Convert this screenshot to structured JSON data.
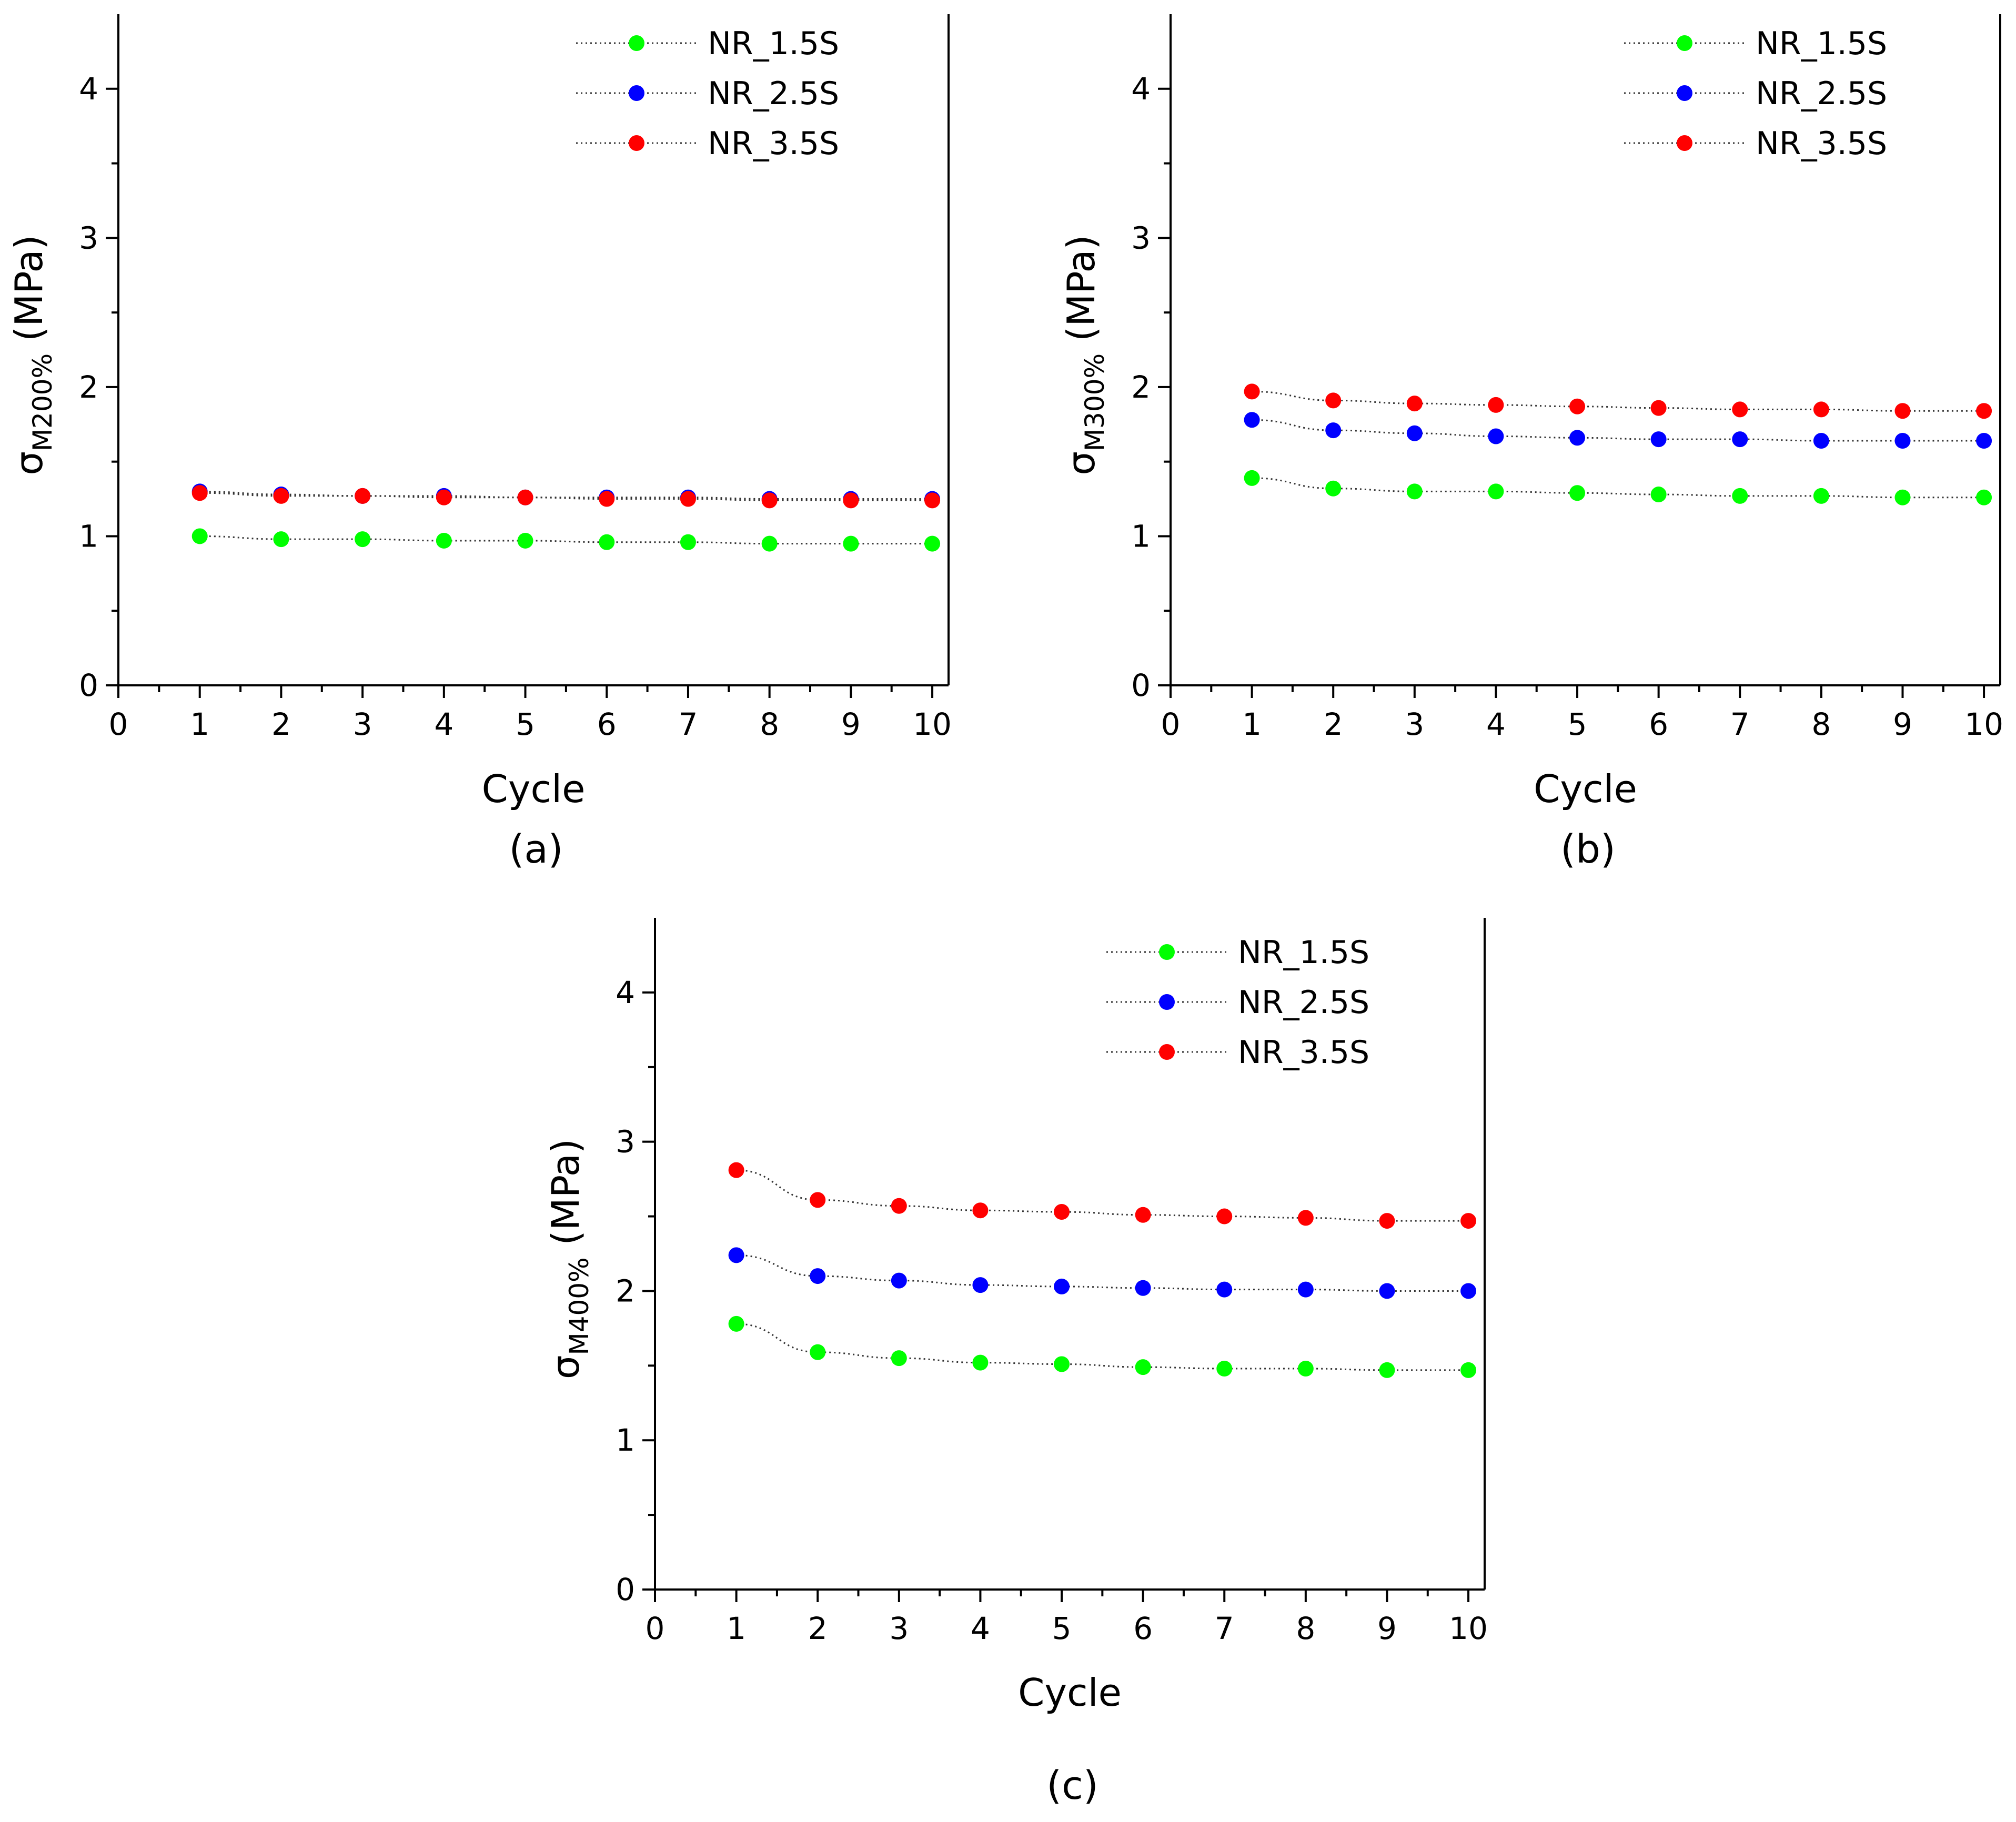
{
  "colors": {
    "NR_1.5S": "#00ff00",
    "NR_2.5S": "#0000ff",
    "NR_3.5S": "#ff0000",
    "axis": "#000000",
    "connector": "#333333"
  },
  "chart_data": [
    {
      "type": "scatter",
      "panel_label": "(a)",
      "xlabel": "Cycle",
      "ylabel": {
        "symbol": "σ",
        "subscript": "M200%",
        "unit": " (MPa)"
      },
      "x": [
        1,
        2,
        3,
        4,
        5,
        6,
        7,
        8,
        9,
        10
      ],
      "xlim": [
        0,
        10.2
      ],
      "ylim": [
        0,
        4.5
      ],
      "x_ticks": [
        "0",
        "1",
        "2",
        "3",
        "4",
        "5",
        "6",
        "7",
        "8",
        "9",
        "10"
      ],
      "y_ticks": [
        "0",
        "1",
        "2",
        "3",
        "4"
      ],
      "legend_position": "top-right",
      "series": [
        {
          "name": "NR_1.5S",
          "values": [
            1.0,
            0.98,
            0.98,
            0.97,
            0.97,
            0.96,
            0.96,
            0.95,
            0.95,
            0.95
          ]
        },
        {
          "name": "NR_2.5S",
          "values": [
            1.3,
            1.28,
            1.27,
            1.27,
            1.26,
            1.26,
            1.26,
            1.25,
            1.25,
            1.25
          ]
        },
        {
          "name": "NR_3.5S",
          "values": [
            1.29,
            1.27,
            1.27,
            1.26,
            1.26,
            1.25,
            1.25,
            1.24,
            1.24,
            1.24
          ]
        }
      ]
    },
    {
      "type": "scatter",
      "panel_label": "(b)",
      "xlabel": "Cycle",
      "ylabel": {
        "symbol": "σ",
        "subscript": "M300%",
        "unit": " (MPa)"
      },
      "x": [
        1,
        2,
        3,
        4,
        5,
        6,
        7,
        8,
        9,
        10
      ],
      "xlim": [
        0,
        10.2
      ],
      "ylim": [
        0,
        4.5
      ],
      "x_ticks": [
        "0",
        "1",
        "2",
        "3",
        "4",
        "5",
        "6",
        "7",
        "8",
        "9",
        "10"
      ],
      "y_ticks": [
        "0",
        "1",
        "2",
        "3",
        "4"
      ],
      "legend_position": "top-right",
      "series": [
        {
          "name": "NR_1.5S",
          "values": [
            1.39,
            1.32,
            1.3,
            1.3,
            1.29,
            1.28,
            1.27,
            1.27,
            1.26,
            1.26
          ]
        },
        {
          "name": "NR_2.5S",
          "values": [
            1.78,
            1.71,
            1.69,
            1.67,
            1.66,
            1.65,
            1.65,
            1.64,
            1.64,
            1.64
          ]
        },
        {
          "name": "NR_3.5S",
          "values": [
            1.97,
            1.91,
            1.89,
            1.88,
            1.87,
            1.86,
            1.85,
            1.85,
            1.84,
            1.84
          ]
        }
      ]
    },
    {
      "type": "scatter",
      "panel_label": "(c)",
      "xlabel": "Cycle",
      "ylabel": {
        "symbol": "σ",
        "subscript": "M400%",
        "unit": " (MPa)"
      },
      "x": [
        1,
        2,
        3,
        4,
        5,
        6,
        7,
        8,
        9,
        10
      ],
      "xlim": [
        0,
        10.2
      ],
      "ylim": [
        0,
        4.5
      ],
      "x_ticks": [
        "0",
        "1",
        "2",
        "3",
        "4",
        "5",
        "6",
        "7",
        "8",
        "9",
        "10"
      ],
      "y_ticks": [
        "0",
        "1",
        "2",
        "3",
        "4"
      ],
      "legend_position": "top-right",
      "series": [
        {
          "name": "NR_1.5S",
          "values": [
            1.78,
            1.59,
            1.55,
            1.52,
            1.51,
            1.49,
            1.48,
            1.48,
            1.47,
            1.47
          ]
        },
        {
          "name": "NR_2.5S",
          "values": [
            2.24,
            2.1,
            2.07,
            2.04,
            2.03,
            2.02,
            2.01,
            2.01,
            2.0,
            2.0
          ]
        },
        {
          "name": "NR_3.5S",
          "values": [
            2.81,
            2.61,
            2.57,
            2.54,
            2.53,
            2.51,
            2.5,
            2.49,
            2.47,
            2.47
          ]
        }
      ]
    }
  ]
}
